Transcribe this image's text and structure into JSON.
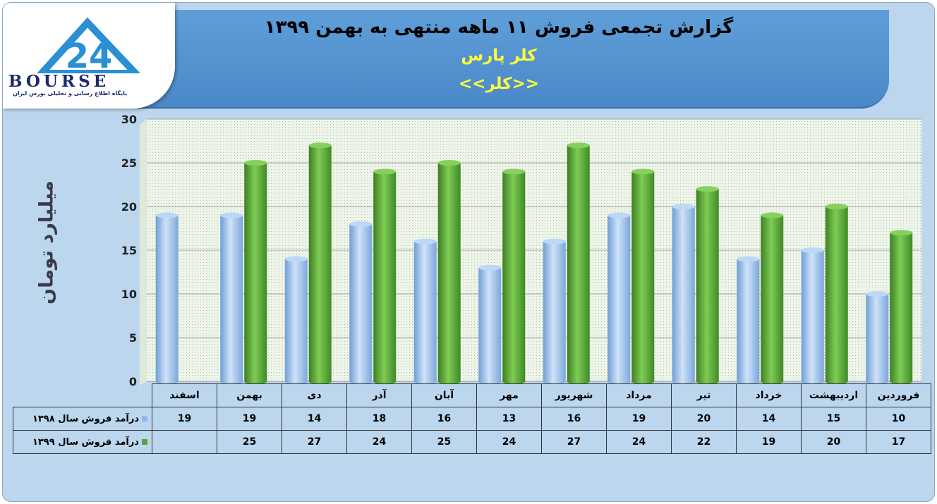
{
  "header": {
    "title": "گزارش تجمعی فروش ۱۱ ماهه منتهی به بهمن ۱۳۹۹",
    "subtitle": "کلر پارس",
    "symbol": "<<کلر>>"
  },
  "logo": {
    "text": "BOURSE",
    "number": "24",
    "tagline": "پایگاه اطلاع رسانی و تحلیلی بورس ایران"
  },
  "colors": {
    "series_1398": "#8db8e8",
    "series_1399": "#5aa33a",
    "plot_bg": "#eaf2e4"
  },
  "chart_data": {
    "type": "bar",
    "ylabel": "میلیارد تومان",
    "ylim": [
      0,
      30
    ],
    "yticks": [
      0,
      5,
      10,
      15,
      20,
      25,
      30
    ],
    "grid": true,
    "categories": [
      "فروردین",
      "اردیبهشت",
      "خرداد",
      "تیر",
      "مرداد",
      "شهریور",
      "مهر",
      "آبان",
      "آذر",
      "دی",
      "بهمن",
      "اسفند"
    ],
    "series": [
      {
        "name": "درآمد فروش سال ۱۳۹۸",
        "values": [
          10,
          15,
          14,
          20,
          19,
          16,
          13,
          16,
          18,
          14,
          19,
          19
        ]
      },
      {
        "name": "درآمد فروش سال ۱۳۹۹",
        "values": [
          17,
          20,
          19,
          22,
          24,
          27,
          24,
          25,
          24,
          27,
          25,
          null
        ]
      }
    ]
  }
}
